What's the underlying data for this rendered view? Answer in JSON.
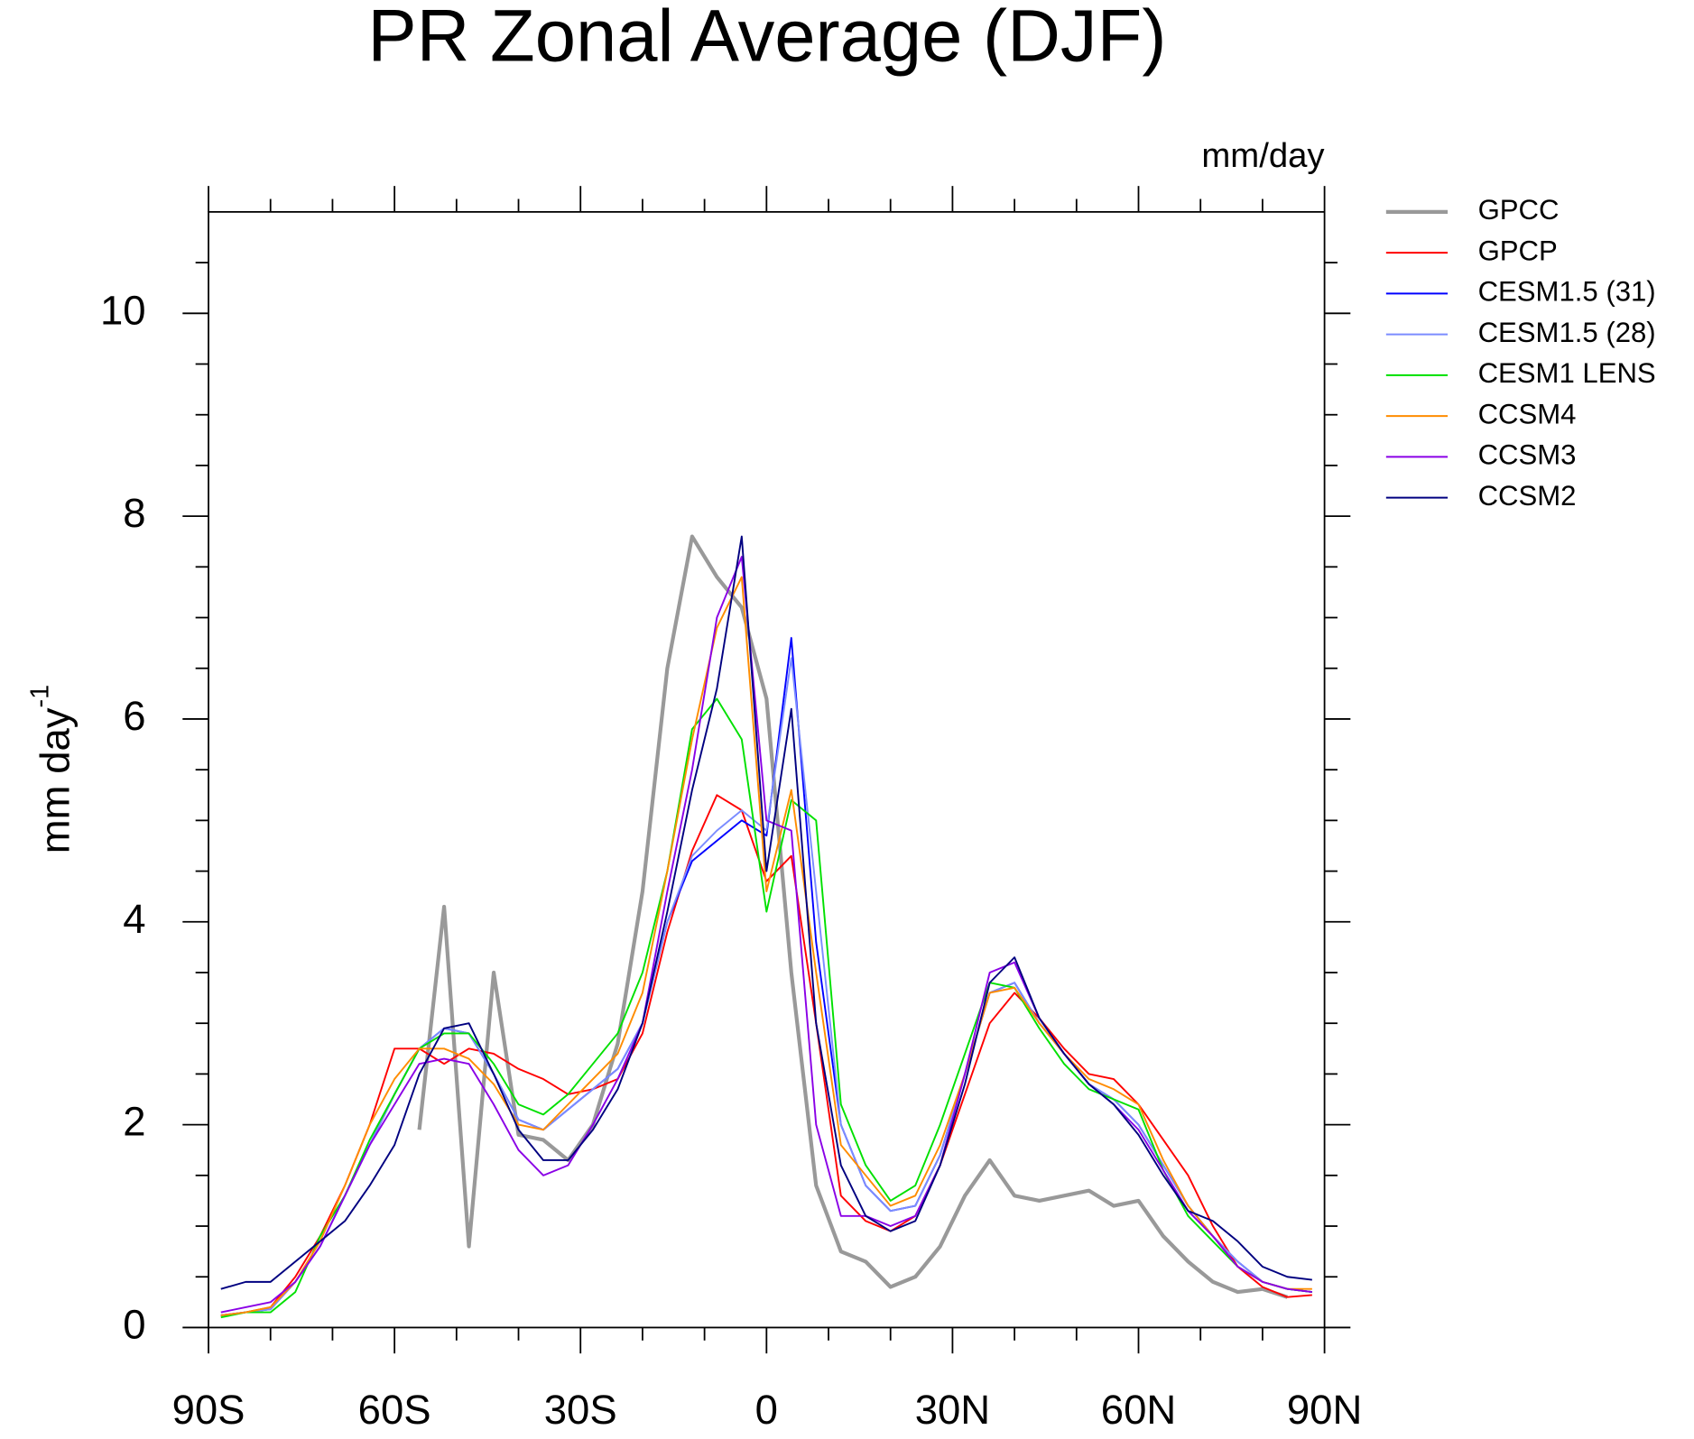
{
  "chart_data": {
    "type": "line",
    "title": "PR Zonal Average (DJF)",
    "units": "mm/day",
    "ylabel": "mm day",
    "ylabel_exponent": "-1",
    "xlim": [
      -90,
      90
    ],
    "ylim": [
      0,
      11
    ],
    "xticks": [
      {
        "value": -90,
        "label": "90S"
      },
      {
        "value": -60,
        "label": "60S"
      },
      {
        "value": -30,
        "label": "30S"
      },
      0,
      {
        "value": 30,
        "label": "30N"
      },
      {
        "value": 60,
        "label": "60N"
      },
      {
        "value": 90,
        "label": "90N"
      }
    ],
    "xticks_minor": [
      -80,
      -70,
      -50,
      -40,
      -20,
      -10,
      10,
      20,
      40,
      50,
      70,
      80
    ],
    "yticks": [
      0,
      2,
      4,
      6,
      8,
      10
    ],
    "yticks_minor": [
      0.5,
      1,
      1.5,
      2.5,
      3,
      3.5,
      4.5,
      5,
      5.5,
      6.5,
      7,
      7.5,
      8.5,
      9,
      9.5,
      10.5
    ],
    "x": [
      -88,
      -84,
      -80,
      -76,
      -72,
      -68,
      -64,
      -60,
      -56,
      -52,
      -48,
      -44,
      -40,
      -36,
      -32,
      -28,
      -24,
      -20,
      -16,
      -12,
      -8,
      -4,
      0,
      4,
      8,
      12,
      16,
      20,
      24,
      28,
      32,
      36,
      40,
      44,
      48,
      52,
      56,
      60,
      64,
      68,
      72,
      76,
      80,
      84,
      88
    ],
    "series": [
      {
        "name": "GPCC",
        "color": "#999999",
        "width": 3.5,
        "values": [
          null,
          null,
          null,
          null,
          null,
          null,
          null,
          null,
          1.95,
          4.15,
          0.8,
          3.5,
          1.9,
          1.85,
          1.65,
          2.0,
          2.8,
          4.3,
          6.5,
          7.8,
          7.4,
          7.1,
          6.2,
          3.5,
          1.4,
          0.75,
          0.65,
          0.4,
          0.5,
          0.8,
          1.3,
          1.65,
          1.3,
          1.25,
          1.3,
          1.35,
          1.2,
          1.25,
          0.9,
          0.65,
          0.45,
          0.35,
          0.38,
          0.3,
          null
        ]
      },
      {
        "name": "GPCP",
        "color": "#ff0000",
        "width": 1.6,
        "values": [
          0.12,
          0.15,
          0.2,
          0.5,
          0.9,
          1.4,
          2.0,
          2.75,
          2.75,
          2.6,
          2.75,
          2.7,
          2.55,
          2.45,
          2.3,
          2.35,
          2.45,
          2.9,
          3.9,
          4.7,
          5.25,
          5.1,
          4.4,
          4.65,
          3.0,
          1.3,
          1.05,
          0.95,
          1.1,
          1.6,
          2.3,
          3.0,
          3.3,
          3.05,
          2.75,
          2.5,
          2.45,
          2.2,
          1.85,
          1.5,
          1.0,
          0.6,
          0.4,
          0.3,
          0.32
        ]
      },
      {
        "name": "CESM1.5 (31)",
        "color": "#0000ff",
        "width": 1.6,
        "values": [
          0.12,
          0.15,
          0.18,
          0.45,
          0.8,
          1.3,
          1.8,
          2.3,
          2.75,
          2.95,
          2.9,
          2.5,
          2.05,
          1.95,
          2.15,
          2.35,
          2.55,
          3.0,
          4.0,
          4.6,
          4.8,
          5.0,
          4.85,
          6.8,
          3.8,
          2.0,
          1.4,
          1.15,
          1.2,
          1.7,
          2.5,
          3.3,
          3.4,
          3.0,
          2.7,
          2.4,
          2.25,
          2.0,
          1.6,
          1.2,
          0.9,
          0.65,
          0.45,
          0.38,
          0.35
        ]
      },
      {
        "name": "CESM1.5 (28)",
        "color": "#7b8cff",
        "width": 1.6,
        "values": [
          0.12,
          0.15,
          0.18,
          0.45,
          0.8,
          1.3,
          1.8,
          2.3,
          2.75,
          2.95,
          2.9,
          2.5,
          2.05,
          1.95,
          2.15,
          2.35,
          2.55,
          3.0,
          4.0,
          4.65,
          4.9,
          5.1,
          4.9,
          6.6,
          4.3,
          2.0,
          1.4,
          1.15,
          1.2,
          1.7,
          2.5,
          3.3,
          3.4,
          3.0,
          2.7,
          2.4,
          2.25,
          2.0,
          1.6,
          1.2,
          0.9,
          0.65,
          0.45,
          0.38,
          0.35
        ]
      },
      {
        "name": "CESM1 LENS",
        "color": "#00e000",
        "width": 1.6,
        "values": [
          0.1,
          0.15,
          0.15,
          0.35,
          0.9,
          1.3,
          1.85,
          2.3,
          2.75,
          2.9,
          2.9,
          2.6,
          2.2,
          2.1,
          2.3,
          2.6,
          2.9,
          3.5,
          4.5,
          5.9,
          6.2,
          5.8,
          4.1,
          5.2,
          5.0,
          2.2,
          1.6,
          1.25,
          1.4,
          2.0,
          2.7,
          3.4,
          3.35,
          2.95,
          2.6,
          2.35,
          2.25,
          2.15,
          1.55,
          1.1,
          0.85,
          0.6,
          0.45,
          0.38,
          0.35
        ]
      },
      {
        "name": "CCSM4",
        "color": "#ff8c00",
        "width": 1.6,
        "values": [
          0.12,
          0.15,
          0.2,
          0.45,
          0.85,
          1.4,
          2.0,
          2.45,
          2.75,
          2.75,
          2.65,
          2.4,
          2.0,
          1.95,
          2.2,
          2.45,
          2.7,
          3.3,
          4.5,
          5.8,
          6.9,
          7.4,
          4.3,
          5.3,
          3.5,
          1.8,
          1.5,
          1.2,
          1.3,
          1.8,
          2.5,
          3.3,
          3.35,
          3.0,
          2.7,
          2.45,
          2.35,
          2.2,
          1.65,
          1.2,
          0.9,
          0.6,
          0.45,
          0.38,
          0.38
        ]
      },
      {
        "name": "CCSM3",
        "color": "#8a00e6",
        "width": 1.6,
        "values": [
          0.15,
          0.2,
          0.25,
          0.45,
          0.8,
          1.3,
          1.8,
          2.2,
          2.6,
          2.65,
          2.6,
          2.2,
          1.75,
          1.5,
          1.6,
          2.0,
          2.45,
          3.0,
          4.3,
          5.5,
          7.0,
          7.6,
          5.0,
          4.9,
          2.0,
          1.1,
          1.1,
          1.0,
          1.1,
          1.6,
          2.5,
          3.5,
          3.6,
          3.05,
          2.7,
          2.4,
          2.2,
          1.95,
          1.55,
          1.15,
          0.9,
          0.6,
          0.45,
          0.38,
          0.35
        ]
      },
      {
        "name": "CCSM2",
        "color": "#000080",
        "width": 1.6,
        "values": [
          0.38,
          0.45,
          0.45,
          0.65,
          0.85,
          1.05,
          1.4,
          1.8,
          2.5,
          2.95,
          3.0,
          2.5,
          1.95,
          1.65,
          1.65,
          1.95,
          2.35,
          3.0,
          4.1,
          5.3,
          6.3,
          7.8,
          4.5,
          6.1,
          3.0,
          1.6,
          1.1,
          0.95,
          1.05,
          1.6,
          2.4,
          3.4,
          3.65,
          3.05,
          2.7,
          2.4,
          2.2,
          1.9,
          1.5,
          1.15,
          1.05,
          0.85,
          0.6,
          0.5,
          0.47
        ]
      }
    ]
  }
}
